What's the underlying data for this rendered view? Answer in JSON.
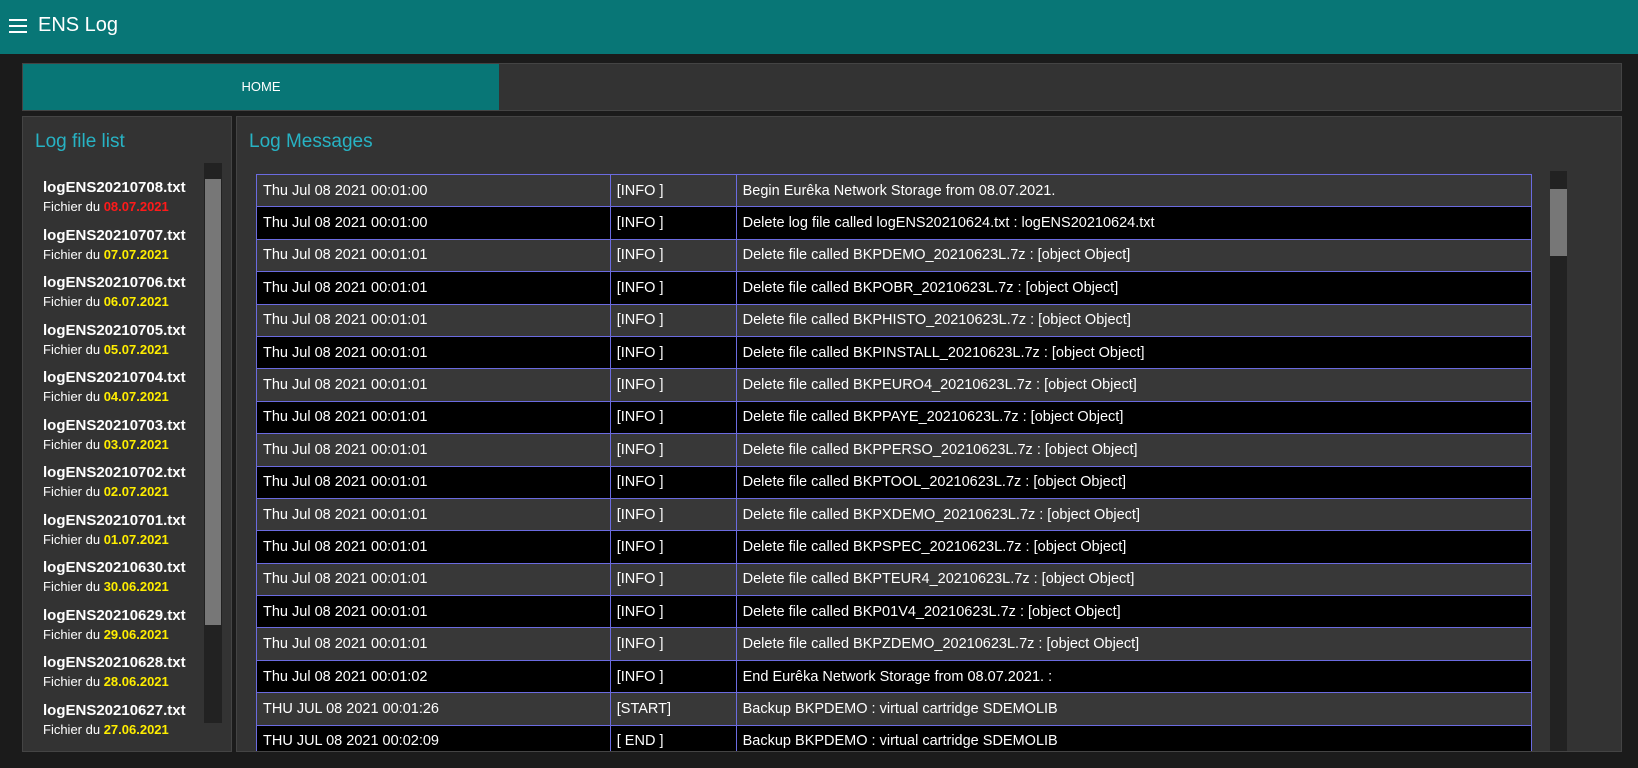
{
  "header": {
    "title": "ENS Log"
  },
  "tabs": [
    "HOME"
  ],
  "sidebar": {
    "title": "Log file list",
    "date_prefix": "Fichier du",
    "files": [
      {
        "name": "logENS20210708.txt",
        "date": "08.07.2021"
      },
      {
        "name": "logENS20210707.txt",
        "date": "07.07.2021"
      },
      {
        "name": "logENS20210706.txt",
        "date": "06.07.2021"
      },
      {
        "name": "logENS20210705.txt",
        "date": "05.07.2021"
      },
      {
        "name": "logENS20210704.txt",
        "date": "04.07.2021"
      },
      {
        "name": "logENS20210703.txt",
        "date": "03.07.2021"
      },
      {
        "name": "logENS20210702.txt",
        "date": "02.07.2021"
      },
      {
        "name": "logENS20210701.txt",
        "date": "01.07.2021"
      },
      {
        "name": "logENS20210630.txt",
        "date": "30.06.2021"
      },
      {
        "name": "logENS20210629.txt",
        "date": "29.06.2021"
      },
      {
        "name": "logENS20210628.txt",
        "date": "28.06.2021"
      },
      {
        "name": "logENS20210627.txt",
        "date": "27.06.2021"
      }
    ]
  },
  "log": {
    "title": "Log Messages",
    "rows": [
      [
        "Thu Jul 08 2021 00:01:00",
        "[INFO ]",
        "Begin Eurêka Network Storage from 08.07.2021."
      ],
      [
        "Thu Jul 08 2021 00:01:00",
        "[INFO ]",
        "Delete log file called logENS20210624.txt : logENS20210624.txt"
      ],
      [
        "Thu Jul 08 2021 00:01:01",
        "[INFO ]",
        "Delete file called BKPDEMO_20210623L.7z : [object Object]"
      ],
      [
        "Thu Jul 08 2021 00:01:01",
        "[INFO ]",
        "Delete file called BKPOBR_20210623L.7z : [object Object]"
      ],
      [
        "Thu Jul 08 2021 00:01:01",
        "[INFO ]",
        "Delete file called BKPHISTO_20210623L.7z : [object Object]"
      ],
      [
        "Thu Jul 08 2021 00:01:01",
        "[INFO ]",
        "Delete file called BKPINSTALL_20210623L.7z : [object Object]"
      ],
      [
        "Thu Jul 08 2021 00:01:01",
        "[INFO ]",
        "Delete file called BKPEURO4_20210623L.7z : [object Object]"
      ],
      [
        "Thu Jul 08 2021 00:01:01",
        "[INFO ]",
        "Delete file called BKPPAYE_20210623L.7z : [object Object]"
      ],
      [
        "Thu Jul 08 2021 00:01:01",
        "[INFO ]",
        "Delete file called BKPPERSO_20210623L.7z : [object Object]"
      ],
      [
        "Thu Jul 08 2021 00:01:01",
        "[INFO ]",
        "Delete file called BKPTOOL_20210623L.7z : [object Object]"
      ],
      [
        "Thu Jul 08 2021 00:01:01",
        "[INFO ]",
        "Delete file called BKPXDEMO_20210623L.7z : [object Object]"
      ],
      [
        "Thu Jul 08 2021 00:01:01",
        "[INFO ]",
        "Delete file called BKPSPEC_20210623L.7z : [object Object]"
      ],
      [
        "Thu Jul 08 2021 00:01:01",
        "[INFO ]",
        "Delete file called BKPTEUR4_20210623L.7z : [object Object]"
      ],
      [
        "Thu Jul 08 2021 00:01:01",
        "[INFO ]",
        "Delete file called BKP01V4_20210623L.7z : [object Object]"
      ],
      [
        "Thu Jul 08 2021 00:01:01",
        "[INFO ]",
        "Delete file called BKPZDEMO_20210623L.7z : [object Object]"
      ],
      [
        "Thu Jul 08 2021 00:01:02",
        "[INFO ]",
        "End Eurêka Network Storage from 08.07.2021. :"
      ],
      [
        "THU JUL 08 2021 00:01:26",
        "[START]",
        "Backup BKPDEMO : virtual cartridge SDEMOLIB"
      ],
      [
        "THU JUL 08 2021 00:02:09",
        "[ END ]",
        "Backup BKPDEMO : virtual cartridge SDEMOLIB"
      ]
    ]
  }
}
